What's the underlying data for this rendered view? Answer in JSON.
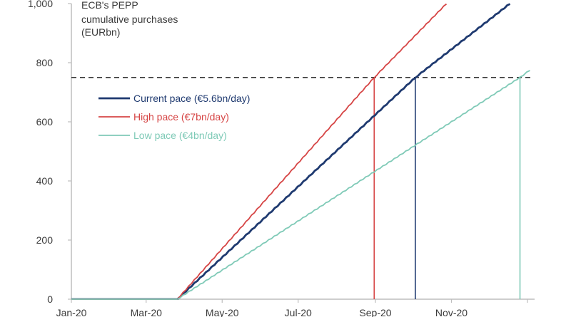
{
  "chart_data": {
    "type": "line",
    "title_lines": [
      "ECB's PEPP",
      "cumulative purchases",
      "(EURbn)"
    ],
    "xlabel": "",
    "ylabel": "",
    "x_tick_labels": [
      "Jan-20",
      "Mar-20",
      "May-20",
      "Jul-20",
      "Sep-20",
      "Nov-20"
    ],
    "x_range": [
      "2020-01-01",
      "2021-01-01"
    ],
    "y_ticks": [
      {
        "value": 0,
        "label": "0"
      },
      {
        "value": 200,
        "label": "200"
      },
      {
        "value": 400,
        "label": "400"
      },
      {
        "value": 600,
        "label": "600"
      },
      {
        "value": 800,
        "label": "800"
      },
      {
        "value": 1000,
        "label": "1,000"
      }
    ],
    "ylim": [
      0,
      1000
    ],
    "grid": false,
    "legend_position": "upper-left",
    "reference_line": {
      "y": 750,
      "style": "dashed"
    },
    "series": [
      {
        "name": "Current  pace (€5.6bn/day)",
        "color": "#1f3a70",
        "points": [
          [
            "2020-01-01",
            0
          ],
          [
            "2020-03-26",
            0
          ],
          [
            "2020-10-03",
            750
          ],
          [
            "2020-12-18",
            1000
          ]
        ],
        "drop_line_at": "2020-10-03"
      },
      {
        "name": "High pace (€7bn/day)",
        "color": "#d64545",
        "points": [
          [
            "2020-01-01",
            0
          ],
          [
            "2020-03-26",
            0
          ],
          [
            "2020-08-31",
            750
          ],
          [
            "2020-10-28",
            1000
          ]
        ],
        "drop_line_at": "2020-08-31"
      },
      {
        "name": "Low pace (€4bn/day)",
        "color": "#7fcab7",
        "points": [
          [
            "2020-01-01",
            0
          ],
          [
            "2020-03-26",
            0
          ],
          [
            "2020-12-26",
            750
          ],
          [
            "2021-01-03",
            775
          ]
        ],
        "drop_line_at": "2020-12-26"
      }
    ]
  }
}
